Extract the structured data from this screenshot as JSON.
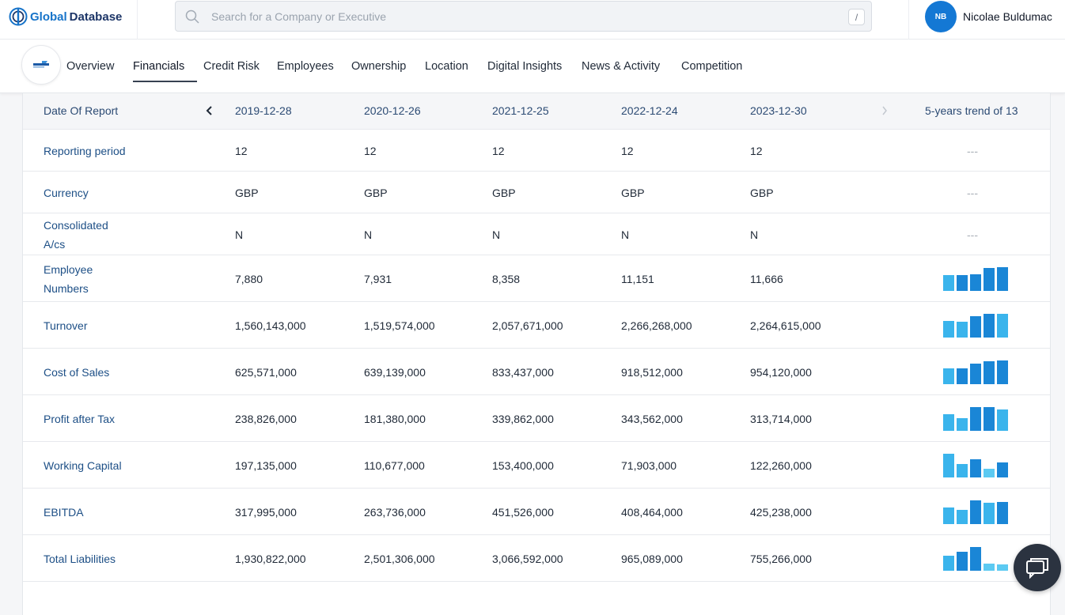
{
  "brand": {
    "part1": "Global",
    "part2": "Database"
  },
  "search": {
    "placeholder": "Search for a Company or Executive",
    "shortcut": "/"
  },
  "user": {
    "initials": "NB",
    "name": "Nicolae Buldumac"
  },
  "tabs": [
    {
      "label": "Overview"
    },
    {
      "label": "Financials",
      "active": true
    },
    {
      "label": "Credit Risk"
    },
    {
      "label": "Employees"
    },
    {
      "label": "Ownership"
    },
    {
      "label": "Location"
    },
    {
      "label": "Digital Insights"
    },
    {
      "label": "News & Activity"
    },
    {
      "label": "Competition"
    }
  ],
  "financials": {
    "header_label": "Date Of Report",
    "dates": [
      "2019-12-28",
      "2020-12-26",
      "2021-12-25",
      "2022-12-24",
      "2023-12-30"
    ],
    "trend_label": "5-years trend of 13",
    "no_trend": "---",
    "rows": [
      {
        "label": "Reporting period",
        "values": [
          "12",
          "12",
          "12",
          "12",
          "12"
        ]
      },
      {
        "label": "Currency",
        "values": [
          "GBP",
          "GBP",
          "GBP",
          "GBP",
          "GBP"
        ]
      },
      {
        "label": "Consolidated A/cs",
        "values": [
          "N",
          "N",
          "N",
          "N",
          "N"
        ]
      },
      {
        "label": "Employee Numbers",
        "values": [
          "7,880",
          "7,931",
          "8,358",
          "11,151",
          "11,666"
        ]
      },
      {
        "label": "Turnover",
        "values": [
          "1,560,143,000",
          "1,519,574,000",
          "2,057,671,000",
          "2,266,268,000",
          "2,264,615,000"
        ]
      },
      {
        "label": "Cost of Sales",
        "values": [
          "625,571,000",
          "639,139,000",
          "833,437,000",
          "918,512,000",
          "954,120,000"
        ]
      },
      {
        "label": "Profit after Tax",
        "values": [
          "238,826,000",
          "181,380,000",
          "339,862,000",
          "343,562,000",
          "313,714,000"
        ]
      },
      {
        "label": "Working Capital",
        "values": [
          "197,135,000",
          "110,677,000",
          "153,400,000",
          "71,903,000",
          "122,260,000"
        ]
      },
      {
        "label": "EBITDA",
        "values": [
          "317,995,000",
          "263,736,000",
          "451,526,000",
          "408,464,000",
          "425,238,000"
        ]
      },
      {
        "label": "Total Liabilities",
        "values": [
          "1,930,822,000",
          "2,501,306,000",
          "3,066,592,000",
          "965,089,000",
          "755,266,000"
        ]
      }
    ]
  },
  "colors": {
    "bar_up": "#1a86d6",
    "bar_down": "#3ab4ec",
    "bar_low": "#5ccaf2"
  }
}
